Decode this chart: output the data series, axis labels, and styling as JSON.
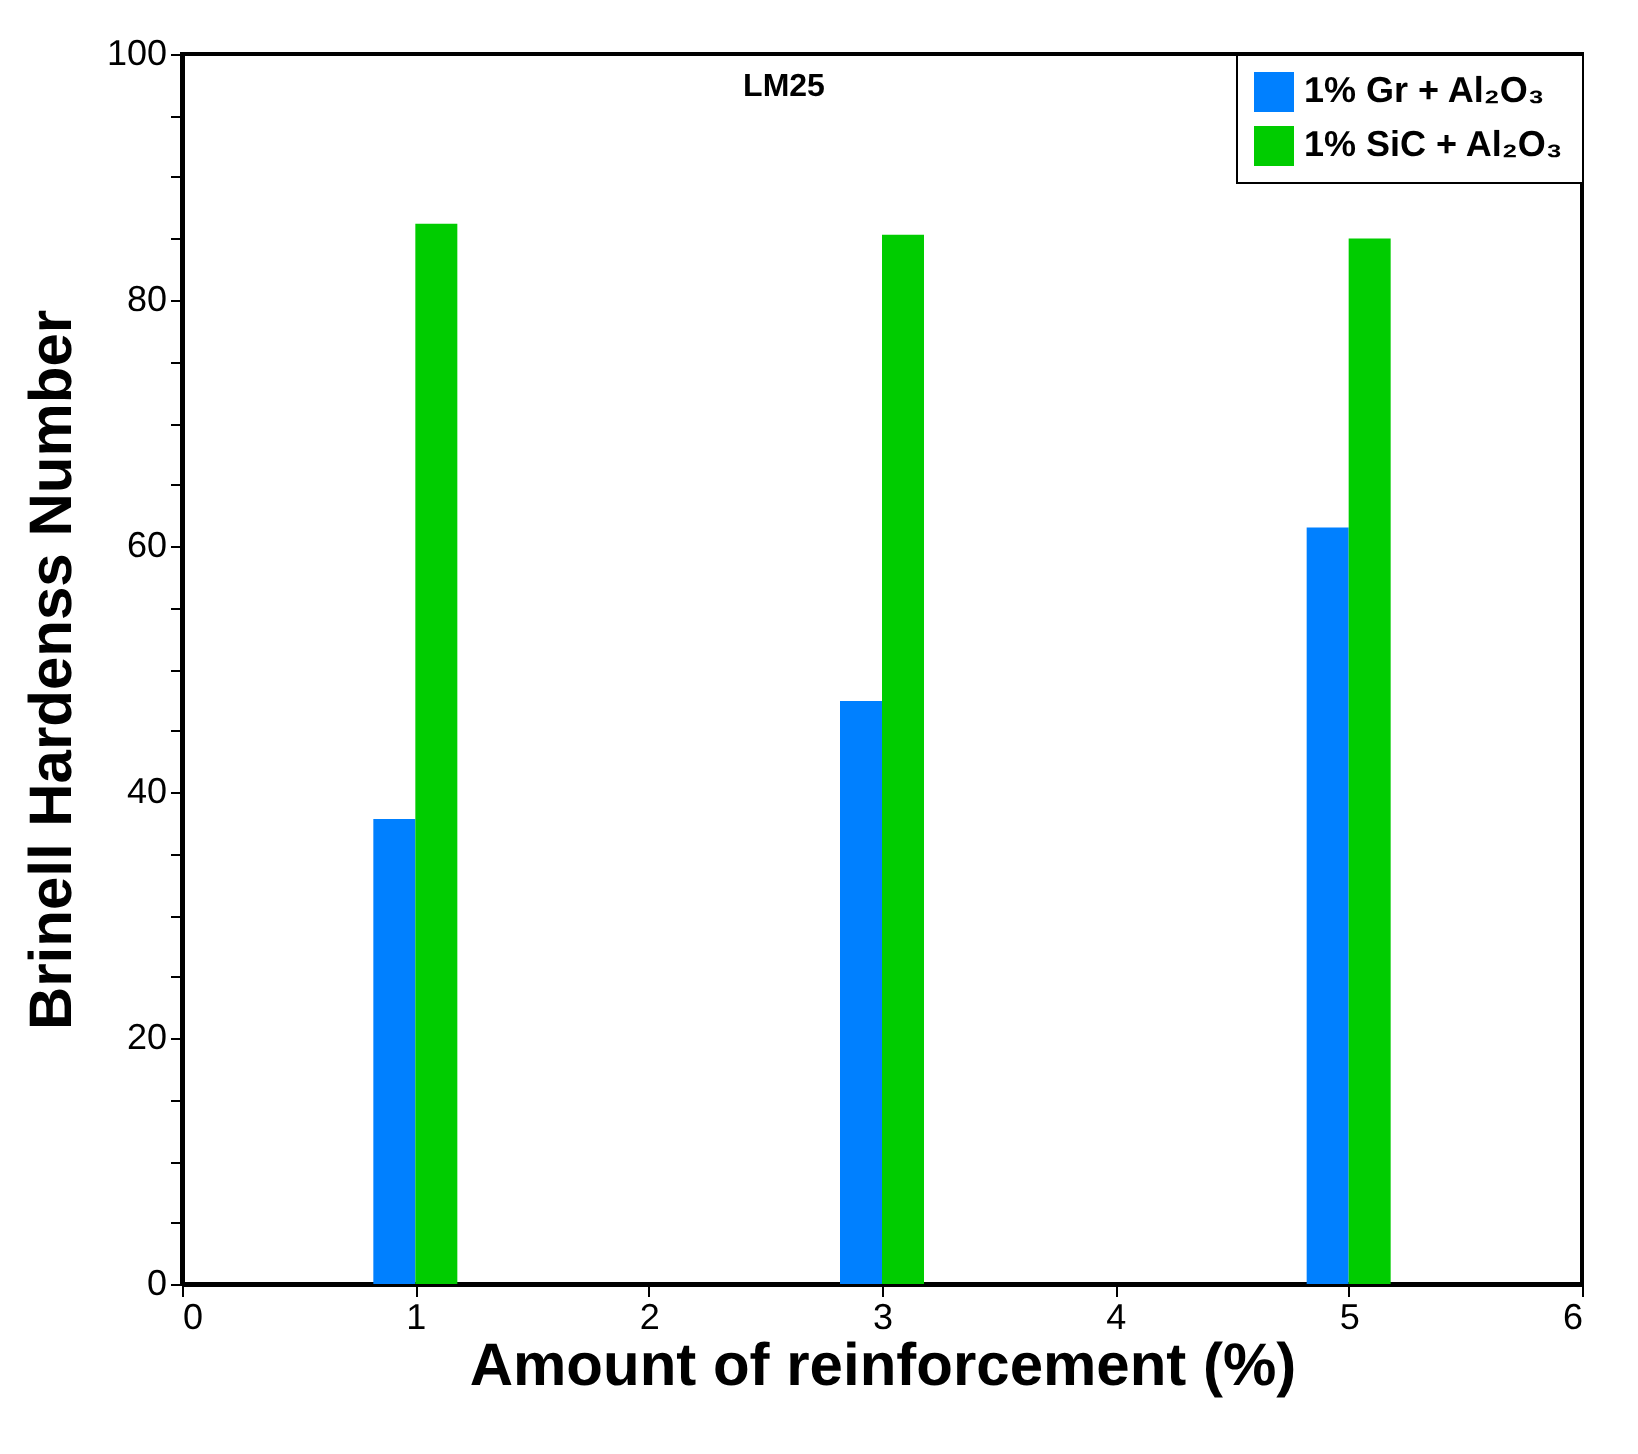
{
  "chart_data": {
    "type": "bar",
    "xlabel": "Amount of reinforcement (%)",
    "ylabel": "Brinell Hardenss Number",
    "annotations": [
      "LM25"
    ],
    "x": [
      1,
      3,
      5
    ],
    "series": [
      {
        "name": "1%   Gr + Al₂O₃",
        "color": "#0080ff",
        "values": [
          37.8,
          47.4,
          61.5
        ]
      },
      {
        "name": "1% SiC + Al₂O₃",
        "color": "#00cc00",
        "values": [
          86.2,
          85.3,
          85.0
        ]
      }
    ],
    "xlim": [
      0,
      6
    ],
    "xticks": [
      0,
      1,
      2,
      3,
      4,
      5,
      6
    ],
    "ylim": [
      0,
      100
    ],
    "yticks": [
      0,
      {
        "value": 5,
        "label": null
      },
      {
        "value": 10,
        "label": null
      },
      {
        "value": 15,
        "label": null
      },
      20,
      {
        "value": 25,
        "label": null
      },
      {
        "value": 30,
        "label": null
      },
      {
        "value": 35,
        "label": null
      },
      40,
      {
        "value": 45,
        "label": null
      },
      {
        "value": 50,
        "label": null
      },
      {
        "value": 55,
        "label": null
      },
      60,
      {
        "value": 65,
        "label": null
      },
      {
        "value": 70,
        "label": null
      },
      {
        "value": 75,
        "label": null
      },
      80,
      {
        "value": 85,
        "label": null
      },
      {
        "value": 90,
        "label": null
      },
      {
        "value": 95,
        "label": null
      },
      100
    ],
    "grid": false,
    "legend": "top right"
  }
}
